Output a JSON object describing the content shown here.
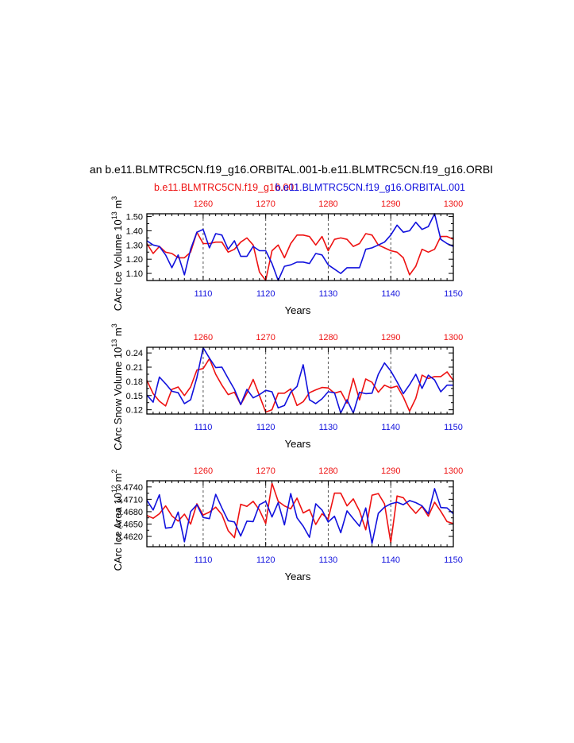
{
  "header": {
    "title": "an b.e11.BLMTRC5CN.f19_g16.ORBITAL.001-b.e11.BLMTRC5CN.f19_g16.ORBI",
    "legend_red": "b.e11.BLMTRC5CN.f19_g16.001",
    "legend_blue": "b.e11.BLMTRC5CN.f19_g16.ORBITAL.001"
  },
  "colors": {
    "red": "#ee1111",
    "blue": "#1111dd",
    "grid": "#555555"
  },
  "chart_data": [
    {
      "type": "line",
      "ylabel": "CArc Ice Volume 10",
      "ylabel_exp": "13",
      "ylabel_unit": " m",
      "ylabel_unit_exp": "3",
      "xlabel": "Years",
      "xlim_bottom": [
        1101,
        1150
      ],
      "xlim_top": [
        1251,
        1300
      ],
      "ylim": [
        1.05,
        1.52
      ],
      "bottom_ticks": [
        "1110",
        "1120",
        "1130",
        "1140",
        "1150"
      ],
      "top_ticks": [
        "1260",
        "1270",
        "1280",
        "1290",
        "1300"
      ],
      "y_ticks": [
        "1.10",
        "1.20",
        "1.30",
        "1.40",
        "1.50"
      ],
      "y_tick_values": [
        1.1,
        1.2,
        1.3,
        1.4,
        1.5
      ],
      "series": [
        {
          "name": "b.e11.BLMTRC5CN.f19_g16.001",
          "color": "#ee1111",
          "values": [
            1.31,
            1.24,
            1.29,
            1.25,
            1.24,
            1.21,
            1.21,
            1.25,
            1.39,
            1.31,
            1.31,
            1.32,
            1.32,
            1.25,
            1.27,
            1.32,
            1.35,
            1.3,
            1.11,
            1.05,
            1.26,
            1.3,
            1.21,
            1.31,
            1.37,
            1.37,
            1.36,
            1.3,
            1.36,
            1.26,
            1.34,
            1.35,
            1.34,
            1.29,
            1.31,
            1.38,
            1.37,
            1.3,
            1.28,
            1.26,
            1.25,
            1.21,
            1.09,
            1.15,
            1.27,
            1.25,
            1.27,
            1.36,
            1.36,
            1.34
          ]
        },
        {
          "name": "b.e11.BLMTRC5CN.f19_g16.ORBITAL.001",
          "color": "#1111dd",
          "values": [
            1.33,
            1.3,
            1.29,
            1.23,
            1.14,
            1.23,
            1.09,
            1.27,
            1.39,
            1.41,
            1.28,
            1.38,
            1.37,
            1.27,
            1.33,
            1.22,
            1.22,
            1.29,
            1.26,
            1.26,
            1.17,
            1.05,
            1.15,
            1.16,
            1.18,
            1.18,
            1.17,
            1.24,
            1.23,
            1.16,
            1.13,
            1.1,
            1.14,
            1.14,
            1.14,
            1.27,
            1.28,
            1.3,
            1.32,
            1.37,
            1.44,
            1.39,
            1.4,
            1.46,
            1.41,
            1.43,
            1.52,
            1.34,
            1.31,
            1.29
          ]
        }
      ]
    },
    {
      "type": "line",
      "ylabel": "CArc Snow Volume 10",
      "ylabel_exp": "13",
      "ylabel_unit": " m",
      "ylabel_unit_exp": "3",
      "xlabel": "Years",
      "xlim_bottom": [
        1101,
        1150
      ],
      "xlim_top": [
        1251,
        1300
      ],
      "ylim": [
        0.111,
        0.252
      ],
      "bottom_ticks": [
        "1110",
        "1120",
        "1130",
        "1140",
        "1150"
      ],
      "top_ticks": [
        "1260",
        "1270",
        "1280",
        "1290",
        "1300"
      ],
      "y_ticks": [
        "0.12",
        "0.15",
        "0.18",
        "0.21",
        "0.24"
      ],
      "y_tick_values": [
        0.12,
        0.15,
        0.18,
        0.21,
        0.24
      ],
      "series": [
        {
          "name": "b.e11.BLMTRC5CN.f19_g16.001",
          "color": "#ee1111",
          "values": [
            0.182,
            0.154,
            0.138,
            0.128,
            0.163,
            0.168,
            0.15,
            0.168,
            0.204,
            0.207,
            0.228,
            0.195,
            0.172,
            0.152,
            0.157,
            0.131,
            0.155,
            0.184,
            0.15,
            0.115,
            0.12,
            0.155,
            0.155,
            0.164,
            0.129,
            0.137,
            0.156,
            0.162,
            0.167,
            0.166,
            0.155,
            0.159,
            0.134,
            0.186,
            0.141,
            0.185,
            0.178,
            0.157,
            0.172,
            0.166,
            0.17,
            0.147,
            0.117,
            0.144,
            0.193,
            0.186,
            0.19,
            0.19,
            0.2,
            0.182
          ]
        },
        {
          "name": "b.e11.BLMTRC5CN.f19_g16.ORBITAL.001",
          "color": "#1111dd",
          "values": [
            0.151,
            0.136,
            0.189,
            0.175,
            0.159,
            0.156,
            0.133,
            0.141,
            0.188,
            0.251,
            0.229,
            0.209,
            0.21,
            0.186,
            0.163,
            0.131,
            0.163,
            0.145,
            0.152,
            0.161,
            0.158,
            0.124,
            0.129,
            0.157,
            0.169,
            0.215,
            0.141,
            0.133,
            0.143,
            0.158,
            0.156,
            0.113,
            0.141,
            0.113,
            0.157,
            0.154,
            0.155,
            0.195,
            0.219,
            0.202,
            0.179,
            0.154,
            0.173,
            0.195,
            0.165,
            0.193,
            0.183,
            0.158,
            0.172,
            0.172
          ]
        }
      ]
    },
    {
      "type": "line",
      "ylabel": "CArc Ice Area 10",
      "ylabel_exp": "12",
      "ylabel_unit": " m",
      "ylabel_unit_exp": "2",
      "xlabel": "Years",
      "xlim_bottom": [
        1101,
        1150
      ],
      "xlim_top": [
        1251,
        1300
      ],
      "ylim": [
        3.4595,
        3.4755
      ],
      "bottom_ticks": [
        "1110",
        "1120",
        "1130",
        "1140",
        "1150"
      ],
      "top_ticks": [
        "1260",
        "1270",
        "1280",
        "1290",
        "1300"
      ],
      "y_ticks": [
        "3.4620",
        "3.4650",
        "3.4680",
        "3.4710",
        "3.4740"
      ],
      "y_tick_values": [
        3.462,
        3.465,
        3.468,
        3.471,
        3.474
      ],
      "series": [
        {
          "name": "b.e11.BLMTRC5CN.f19_g16.001",
          "color": "#ee1111",
          "values": [
            3.4671,
            3.4664,
            3.4675,
            3.4694,
            3.467,
            3.4657,
            3.4674,
            3.465,
            3.4699,
            3.4672,
            3.4679,
            3.4691,
            3.4673,
            3.4634,
            3.4617,
            3.4698,
            3.4693,
            3.4705,
            3.4684,
            3.4651,
            3.4749,
            3.4705,
            3.4694,
            3.4687,
            3.4713,
            3.4677,
            3.4685,
            3.4649,
            3.4675,
            3.4662,
            3.4725,
            3.4725,
            3.4694,
            3.4711,
            3.4682,
            3.4636,
            3.472,
            3.4724,
            3.4699,
            3.4605,
            3.4718,
            3.4714,
            3.4693,
            3.4676,
            3.4693,
            3.4669,
            3.4703,
            3.4681,
            3.4656,
            3.4651
          ]
        },
        {
          "name": "b.e11.BLMTRC5CN.f19_g16.ORBITAL.001",
          "color": "#1111dd",
          "values": [
            3.4708,
            3.4684,
            3.4721,
            3.464,
            3.4642,
            3.4679,
            3.4607,
            3.468,
            3.4697,
            3.4666,
            3.4663,
            3.4722,
            3.4689,
            3.4658,
            3.4655,
            3.4621,
            3.4657,
            3.4656,
            3.4697,
            3.4705,
            3.4667,
            3.4702,
            3.4648,
            3.4724,
            3.4665,
            3.4645,
            3.4618,
            3.4699,
            3.4684,
            3.4655,
            3.4669,
            3.4629,
            3.4682,
            3.4663,
            3.4645,
            3.4689,
            3.4603,
            3.4676,
            3.4691,
            3.4699,
            3.4703,
            3.4697,
            3.4707,
            3.4702,
            3.4694,
            3.4675,
            3.4736,
            3.469,
            3.4689,
            3.4675
          ]
        }
      ]
    }
  ]
}
